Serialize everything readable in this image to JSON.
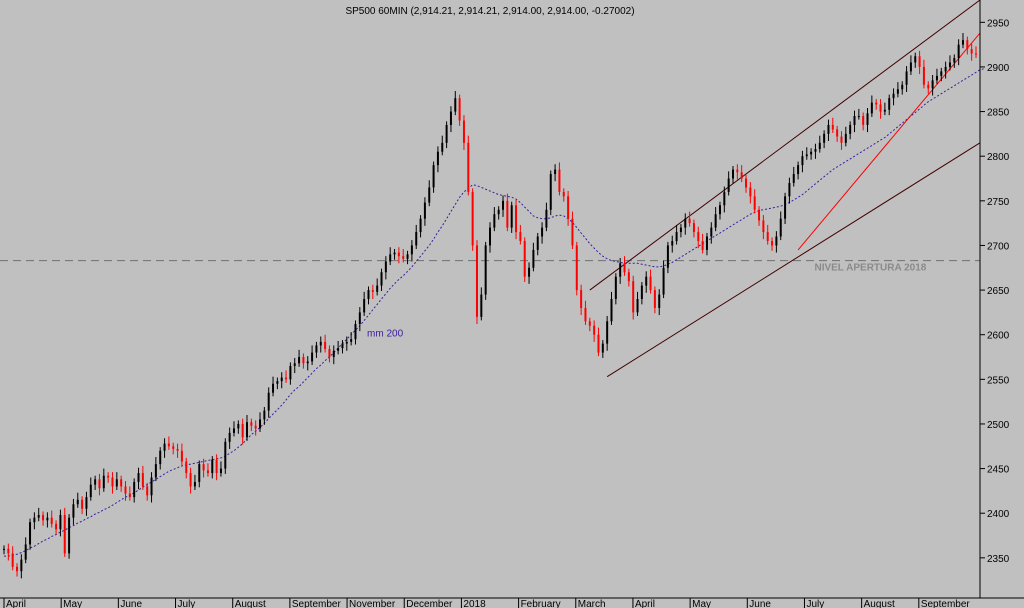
{
  "chart_data": {
    "type": "candlestick",
    "title": "SP500 60MIN (2,914.21, 2,914.21, 2,914.00, 2,914.00, -0.27002)",
    "xlabel": "",
    "ylabel": "",
    "ylim": [
      2305,
      2975
    ],
    "y_ticks": [
      2350,
      2400,
      2450,
      2500,
      2550,
      2600,
      2650,
      2700,
      2750,
      2800,
      2850,
      2900,
      2950
    ],
    "x_ticks": [
      "April",
      "May",
      "June",
      "July",
      "August",
      "September",
      "November",
      "December",
      "2018",
      "February",
      "March",
      "April",
      "May",
      "June",
      "July",
      "August",
      "September"
    ],
    "grid": false,
    "up_color": "#000000",
    "down_color": "#ff0000",
    "ma_color": "#3b1d9e",
    "channel_color": "#400000",
    "trend_color": "#ff0000",
    "series": [
      {
        "name": "SP500 60MIN",
        "values": [
          2360,
          2355,
          2340,
          2335,
          2348,
          2365,
          2390,
          2395,
          2398,
          2392,
          2395,
          2388,
          2382,
          2398,
          2355,
          2395,
          2410,
          2415,
          2405,
          2418,
          2432,
          2438,
          2428,
          2442,
          2440,
          2430,
          2438,
          2430,
          2422,
          2418,
          2435,
          2445,
          2430,
          2420,
          2440,
          2455,
          2470,
          2478,
          2475,
          2472,
          2470,
          2458,
          2445,
          2430,
          2435,
          2455,
          2448,
          2445,
          2460,
          2445,
          2450,
          2480,
          2490,
          2495,
          2500,
          2485,
          2502,
          2498,
          2495,
          2505,
          2515,
          2535,
          2545,
          2548,
          2552,
          2550,
          2565,
          2568,
          2575,
          2568,
          2570,
          2580,
          2588,
          2592,
          2584,
          2575,
          2582,
          2585,
          2590,
          2592,
          2595,
          2612,
          2625,
          2640,
          2650,
          2648,
          2655,
          2670,
          2682,
          2690,
          2692,
          2688,
          2685,
          2690,
          2700,
          2715,
          2730,
          2748,
          2765,
          2790,
          2805,
          2815,
          2835,
          2850,
          2865,
          2840,
          2815,
          2760,
          2700,
          2620,
          2645,
          2700,
          2720,
          2735,
          2740,
          2750,
          2720,
          2745,
          2715,
          2705,
          2665,
          2675,
          2695,
          2710,
          2720,
          2740,
          2780,
          2785,
          2760,
          2755,
          2730,
          2700,
          2650,
          2630,
          2615,
          2610,
          2600,
          2580,
          2590,
          2615,
          2640,
          2665,
          2680,
          2670,
          2660,
          2625,
          2640,
          2655,
          2665,
          2650,
          2630,
          2645,
          2675,
          2700,
          2705,
          2715,
          2720,
          2730,
          2725,
          2715,
          2705,
          2695,
          2710,
          2720,
          2735,
          2745,
          2760,
          2775,
          2785,
          2782,
          2775,
          2765,
          2755,
          2740,
          2728,
          2715,
          2705,
          2700,
          2710,
          2730,
          2755,
          2770,
          2780,
          2790,
          2800,
          2802,
          2805,
          2808,
          2815,
          2825,
          2835,
          2830,
          2822,
          2815,
          2825,
          2835,
          2845,
          2845,
          2835,
          2848,
          2860,
          2858,
          2850,
          2852,
          2865,
          2870,
          2875,
          2880,
          2895,
          2905,
          2912,
          2900,
          2880,
          2876,
          2885,
          2890,
          2895,
          2900,
          2905,
          2910,
          2925,
          2930,
          2920,
          2915,
          2914
        ],
        "ma200": [
          2352,
          2352,
          2353,
          2354,
          2356,
          2358,
          2361,
          2363,
          2366,
          2369,
          2371,
          2374,
          2376,
          2379,
          2381,
          2384,
          2386,
          2389,
          2391,
          2394,
          2396,
          2399,
          2401,
          2404,
          2406,
          2409,
          2412,
          2415,
          2418,
          2420,
          2423,
          2426,
          2429,
          2432,
          2435,
          2438,
          2441,
          2444,
          2447,
          2449,
          2451,
          2453,
          2454,
          2455,
          2456,
          2457,
          2458,
          2459,
          2460,
          2461,
          2462,
          2464,
          2467,
          2470,
          2474,
          2478,
          2483,
          2488,
          2492,
          2496,
          2501,
          2506,
          2511,
          2516,
          2521,
          2527,
          2533,
          2538,
          2542,
          2547,
          2552,
          2557,
          2562,
          2566,
          2571,
          2575,
          2580,
          2585,
          2590,
          2595,
          2600,
          2605,
          2610,
          2616,
          2622,
          2628,
          2634,
          2640,
          2646,
          2652,
          2657,
          2662,
          2666,
          2671,
          2676,
          2682,
          2688,
          2694,
          2700,
          2707,
          2715,
          2722,
          2730,
          2738,
          2746,
          2754,
          2760,
          2764,
          2768,
          2767,
          2765,
          2763,
          2761,
          2759,
          2757,
          2756,
          2755,
          2754,
          2752,
          2748,
          2743,
          2738,
          2733,
          2731,
          2730,
          2730,
          2731,
          2733,
          2734,
          2733,
          2730,
          2726,
          2720,
          2714,
          2708,
          2702,
          2697,
          2692,
          2688,
          2685,
          2683,
          2682,
          2681,
          2680,
          2680,
          2680,
          2680,
          2679,
          2678,
          2677,
          2676,
          2676,
          2677,
          2679,
          2681,
          2684,
          2687,
          2690,
          2693,
          2696,
          2699,
          2702,
          2705,
          2708,
          2711,
          2714,
          2717,
          2720,
          2723,
          2726,
          2729,
          2732,
          2735,
          2737,
          2739,
          2740,
          2741,
          2742,
          2743,
          2744,
          2746,
          2748,
          2751,
          2754,
          2757,
          2761,
          2765,
          2769,
          2773,
          2777,
          2781,
          2785,
          2788,
          2791,
          2794,
          2797,
          2800,
          2803,
          2806,
          2809,
          2812,
          2815,
          2818,
          2821,
          2825,
          2829,
          2833,
          2837,
          2841,
          2845,
          2849,
          2853,
          2857,
          2861,
          2864,
          2867,
          2870,
          2873,
          2876,
          2879,
          2882,
          2885,
          2888,
          2891,
          2894,
          2897,
          2898
        ]
      }
    ],
    "annotations": [
      {
        "text": "mm 200",
        "x": "November",
        "y": 2598
      },
      {
        "text": "NIVEL APERTURA 2018",
        "x": "July",
        "y": 2672
      }
    ],
    "horizontal_lines": [
      {
        "y": 2683,
        "style": "dashed"
      }
    ]
  }
}
